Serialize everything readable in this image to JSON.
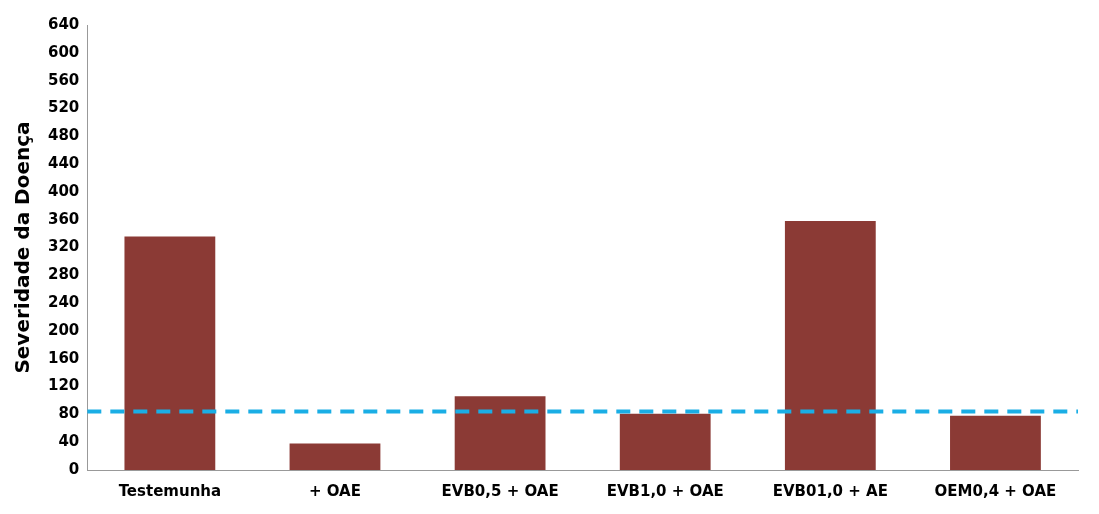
{
  "chart_data": {
    "type": "bar",
    "ylabel": "Severidade da Doença",
    "categories": [
      "Testemunha",
      "+ OAE",
      "EVB0,5 + OAE",
      "EVB1,0 + OAE",
      "EVB01,0 + AE",
      "OEM0,4 + OAE"
    ],
    "values": [
      336,
      38,
      106,
      81,
      358,
      78
    ],
    "color": "#8b3a35",
    "ylim": [
      0,
      640
    ],
    "yticks": [
      0,
      40,
      80,
      120,
      160,
      200,
      240,
      280,
      320,
      360,
      400,
      440,
      480,
      520,
      560,
      600,
      640
    ],
    "grid": false,
    "legend": false,
    "ref_lines": [
      {
        "axis": "y",
        "value": 84,
        "color": "#1aaee5",
        "line_style": "dashed"
      }
    ]
  }
}
